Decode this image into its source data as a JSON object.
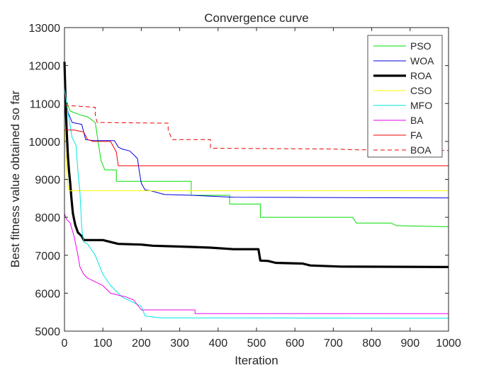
{
  "chart_data": {
    "type": "line",
    "title": "Convergence curve",
    "xlabel": "Iteration",
    "ylabel": "Best fitness value obtained so far",
    "xlim": [
      0,
      1000
    ],
    "ylim": [
      5000,
      13000
    ],
    "xticks": [
      "0",
      "100",
      "200",
      "300",
      "400",
      "500",
      "600",
      "700",
      "800",
      "900",
      "1000"
    ],
    "yticks": [
      "5000",
      "6000",
      "7000",
      "8000",
      "9000",
      "10000",
      "11000",
      "12000",
      "13000"
    ],
    "grid": false,
    "legend_position": "top-right",
    "series": [
      {
        "name": "PSO",
        "color": "#00dd00",
        "dash": "solid",
        "width": 1,
        "points": [
          [
            0,
            11500
          ],
          [
            5,
            11050
          ],
          [
            15,
            10800
          ],
          [
            40,
            10700
          ],
          [
            60,
            10650
          ],
          [
            80,
            10500
          ],
          [
            95,
            9500
          ],
          [
            105,
            9250
          ],
          [
            135,
            9250
          ],
          [
            135,
            8950
          ],
          [
            330,
            8950
          ],
          [
            330,
            8580
          ],
          [
            430,
            8580
          ],
          [
            430,
            8350
          ],
          [
            510,
            8350
          ],
          [
            510,
            8000
          ],
          [
            750,
            8000
          ],
          [
            760,
            7850
          ],
          [
            850,
            7850
          ],
          [
            865,
            7780
          ],
          [
            1000,
            7750
          ]
        ]
      },
      {
        "name": "WOA",
        "color": "#0000dd",
        "dash": "solid",
        "width": 1,
        "points": [
          [
            0,
            11200
          ],
          [
            10,
            10750
          ],
          [
            20,
            10500
          ],
          [
            45,
            10450
          ],
          [
            55,
            10050
          ],
          [
            75,
            10020
          ],
          [
            130,
            10020
          ],
          [
            140,
            9850
          ],
          [
            150,
            9800
          ],
          [
            170,
            9750
          ],
          [
            190,
            9550
          ],
          [
            195,
            9200
          ],
          [
            200,
            8900
          ],
          [
            210,
            8720
          ],
          [
            225,
            8700
          ],
          [
            260,
            8600
          ],
          [
            330,
            8580
          ],
          [
            440,
            8530
          ],
          [
            1000,
            8510
          ]
        ]
      },
      {
        "name": "ROA",
        "color": "#000000",
        "dash": "solid",
        "width": 3.2,
        "points": [
          [
            0,
            12100
          ],
          [
            3,
            11000
          ],
          [
            6,
            10200
          ],
          [
            9,
            9600
          ],
          [
            12,
            9200
          ],
          [
            15,
            8900
          ],
          [
            18,
            8500
          ],
          [
            22,
            8100
          ],
          [
            28,
            7800
          ],
          [
            35,
            7600
          ],
          [
            45,
            7500
          ],
          [
            50,
            7400
          ],
          [
            100,
            7400
          ],
          [
            140,
            7300
          ],
          [
            200,
            7280
          ],
          [
            230,
            7250
          ],
          [
            330,
            7220
          ],
          [
            380,
            7200
          ],
          [
            440,
            7160
          ],
          [
            505,
            7160
          ],
          [
            510,
            6860
          ],
          [
            530,
            6850
          ],
          [
            550,
            6800
          ],
          [
            620,
            6780
          ],
          [
            640,
            6730
          ],
          [
            720,
            6700
          ],
          [
            1000,
            6690
          ]
        ]
      },
      {
        "name": "CSO",
        "color": "#ffff00",
        "dash": "solid",
        "width": 1,
        "points": [
          [
            0,
            10400
          ],
          [
            8,
            8900
          ],
          [
            12,
            8700
          ],
          [
            1000,
            8700
          ]
        ]
      },
      {
        "name": "MFO",
        "color": "#00e5e5",
        "dash": "solid",
        "width": 1,
        "points": [
          [
            0,
            11400
          ],
          [
            10,
            10700
          ],
          [
            20,
            10100
          ],
          [
            30,
            9900
          ],
          [
            35,
            9200
          ],
          [
            40,
            8700
          ],
          [
            45,
            7700
          ],
          [
            50,
            7350
          ],
          [
            60,
            7300
          ],
          [
            80,
            7000
          ],
          [
            100,
            6500
          ],
          [
            120,
            6200
          ],
          [
            150,
            5900
          ],
          [
            200,
            5650
          ],
          [
            210,
            5400
          ],
          [
            250,
            5350
          ],
          [
            1000,
            5340
          ]
        ]
      },
      {
        "name": "BA",
        "color": "#ee00ee",
        "dash": "solid",
        "width": 1,
        "points": [
          [
            0,
            8100
          ],
          [
            5,
            7950
          ],
          [
            15,
            7850
          ],
          [
            25,
            7500
          ],
          [
            35,
            7000
          ],
          [
            40,
            6700
          ],
          [
            50,
            6500
          ],
          [
            60,
            6400
          ],
          [
            80,
            6300
          ],
          [
            100,
            6200
          ],
          [
            120,
            6000
          ],
          [
            140,
            5950
          ],
          [
            160,
            5900
          ],
          [
            180,
            5820
          ],
          [
            200,
            5560
          ],
          [
            340,
            5560
          ],
          [
            340,
            5460
          ],
          [
            1000,
            5460
          ]
        ]
      },
      {
        "name": "FA",
        "color": "#ee0000",
        "dash": "solid",
        "width": 1,
        "points": [
          [
            0,
            10300
          ],
          [
            25,
            10300
          ],
          [
            50,
            10250
          ],
          [
            60,
            10050
          ],
          [
            75,
            10000
          ],
          [
            120,
            10000
          ],
          [
            135,
            9720
          ],
          [
            140,
            9360
          ],
          [
            1000,
            9360
          ]
        ]
      },
      {
        "name": "BOA",
        "color": "#ee0000",
        "dash": "dashed",
        "width": 1,
        "points": [
          [
            0,
            10950
          ],
          [
            80,
            10900
          ],
          [
            80,
            10700
          ],
          [
            85,
            10500
          ],
          [
            270,
            10480
          ],
          [
            270,
            10300
          ],
          [
            280,
            10050
          ],
          [
            380,
            10050
          ],
          [
            380,
            9820
          ],
          [
            700,
            9800
          ],
          [
            760,
            9780
          ],
          [
            1000,
            9760
          ]
        ]
      }
    ]
  }
}
